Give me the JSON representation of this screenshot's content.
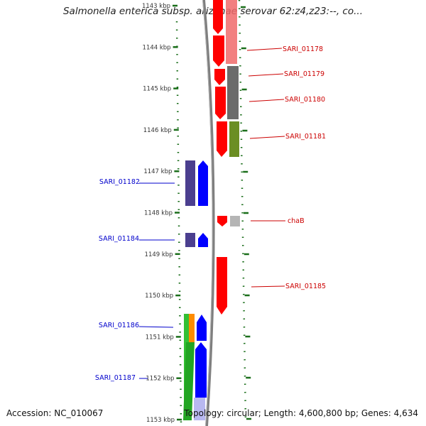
{
  "title": "Salmonella enterica subsp. arizonae serovar 62:z4,z23:--, co...",
  "footer": {
    "accession": "Accession: NC_010067",
    "topology": "Topology: circular; Length: 4,600,800 bp; Genes: 4,634"
  },
  "scale": {
    "start_kbp": 1143,
    "end_kbp": 1153,
    "ticks": [
      "1143 kbp",
      "1144 kbp",
      "1145 kbp",
      "1146 kbp",
      "1147 kbp",
      "1148 kbp",
      "1149 kbp",
      "1150 kbp",
      "1151 kbp",
      "1152 kbp",
      "1153 kbp"
    ]
  },
  "colors": {
    "forward_cds": "#0000ff",
    "forward_gene": "#4b3f8f",
    "reverse_cds": "#ff0000",
    "label_forward": "#0000cc",
    "label_reverse": "#cc0000",
    "backbone": "#808080",
    "ticks": "#1a6e1a"
  },
  "genes_forward": [
    {
      "label": "SARI_01182",
      "start_kbp": 1146.75,
      "end_kbp": 1147.9
    },
    {
      "label": "SARI_01184",
      "start_kbp": 1148.48,
      "end_kbp": 1148.85
    },
    {
      "label": "SARI_01186",
      "start_kbp": 1150.47,
      "end_kbp": 1151.15
    },
    {
      "label": "SARI_01187",
      "start_kbp": 1151.15,
      "end_kbp": 1153.0
    }
  ],
  "genes_reverse": [
    {
      "label": "SARI_01178",
      "start_kbp": 1143.0,
      "end_kbp": 1144.25
    },
    {
      "label": "SARI_01179",
      "start_kbp": 1144.25,
      "end_kbp": 1144.6
    },
    {
      "label": "SARI_01180",
      "start_kbp": 1144.65,
      "end_kbp": 1145.5
    },
    {
      "label": "SARI_01181",
      "start_kbp": 1145.55,
      "end_kbp": 1146.4
    },
    {
      "label": "chaB",
      "start_kbp": 1148.08,
      "end_kbp": 1148.3
    },
    {
      "label": "SARI_01185",
      "start_kbp": 1149.2,
      "end_kbp": 1150.5
    }
  ]
}
